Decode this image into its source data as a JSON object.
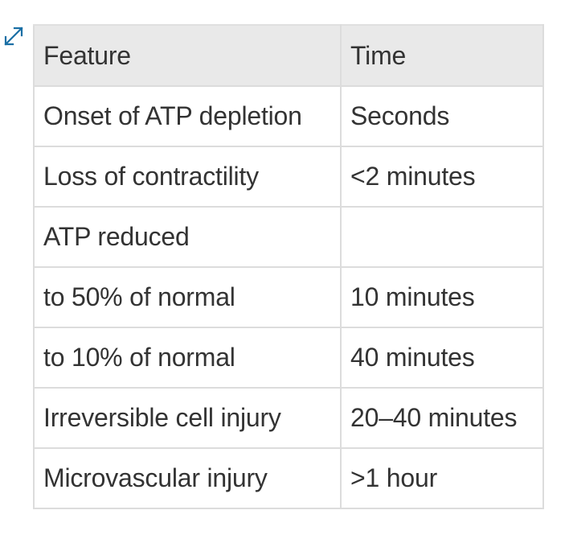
{
  "table": {
    "headers": [
      "Feature",
      "Time"
    ],
    "rows": [
      [
        "Onset of ATP depletion",
        "Seconds"
      ],
      [
        "Loss of contractility",
        "<2 minutes"
      ],
      [
        "ATP reduced",
        ""
      ],
      [
        "to 50% of normal",
        "10 minutes"
      ],
      [
        "to 10% of normal",
        "40 minutes"
      ],
      [
        "Irreversible cell injury",
        "20–40 minutes"
      ],
      [
        "Microvascular injury",
        ">1 hour"
      ]
    ]
  },
  "icons": {
    "expand": "expand-arrows-icon"
  },
  "colors": {
    "header_bg": "#e9e9e9",
    "border": "#dcdcdc",
    "text": "#333333",
    "icon": "#1a6fa5"
  }
}
